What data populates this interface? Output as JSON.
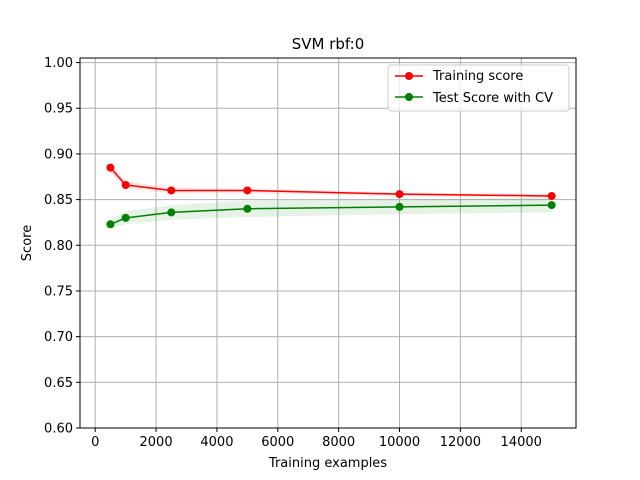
{
  "chart_data": {
    "type": "line",
    "title": "SVM rbf:0",
    "xlabel": "Training examples",
    "ylabel": "Score",
    "xlim": [
      -500,
      15800
    ],
    "ylim": [
      0.6,
      1.005
    ],
    "x_ticks": [
      0,
      2000,
      4000,
      6000,
      8000,
      10000,
      12000,
      14000
    ],
    "y_ticks": [
      0.6,
      0.65,
      0.7,
      0.75,
      0.8,
      0.85,
      0.9,
      0.95,
      1.0
    ],
    "x_tick_labels": [
      "0",
      "2000",
      "4000",
      "6000",
      "8000",
      "10000",
      "12000",
      "14000"
    ],
    "y_tick_labels": [
      "0.60",
      "0.65",
      "0.70",
      "0.75",
      "0.80",
      "0.85",
      "0.90",
      "0.95",
      "1.00"
    ],
    "grid": true,
    "legend_position": "top-right",
    "x": [
      500,
      1000,
      2500,
      5000,
      10000,
      15000
    ],
    "series": [
      {
        "name": "Training score",
        "color": "#ff0000",
        "values": [
          0.885,
          0.866,
          0.86,
          0.86,
          0.856,
          0.854
        ],
        "band_lower": [
          0.88,
          0.862,
          0.857,
          0.857,
          0.854,
          0.852
        ],
        "band_upper": [
          0.89,
          0.87,
          0.863,
          0.862,
          0.858,
          0.856
        ]
      },
      {
        "name": "Test Score with CV",
        "color": "#008000",
        "values": [
          0.823,
          0.83,
          0.836,
          0.84,
          0.842,
          0.844
        ],
        "band_lower": [
          0.818,
          0.823,
          0.828,
          0.831,
          0.834,
          0.836
        ],
        "band_upper": [
          0.828,
          0.837,
          0.844,
          0.849,
          0.85,
          0.852
        ]
      }
    ]
  }
}
